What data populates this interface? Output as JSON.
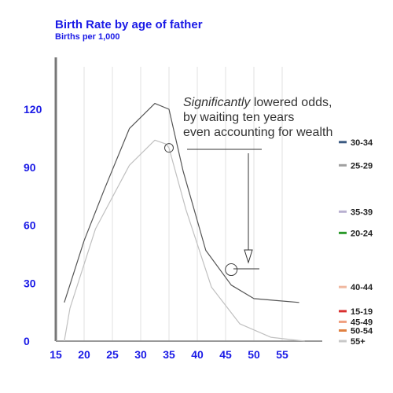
{
  "chart_data": {
    "type": "line",
    "title": "Birth Rate by age of father",
    "subtitle": "Births per 1,000",
    "xlabel": "",
    "ylabel": "",
    "x_ticks": [
      15,
      20,
      25,
      30,
      35,
      40,
      45,
      50,
      55
    ],
    "y_ticks": [
      0,
      30,
      60,
      90,
      120
    ],
    "xlim": [
      15,
      60
    ],
    "ylim": [
      0,
      135
    ],
    "grid": "vertical",
    "series": [
      {
        "x": [
          16.5,
          20,
          23.5,
          28,
          32.5,
          35,
          37.5,
          41.5,
          46,
          50,
          54,
          58
        ],
        "y": [
          20,
          52,
          78,
          110,
          123,
          120,
          88,
          47,
          29,
          22,
          21,
          20
        ]
      },
      {
        "x": [
          16.5,
          17.5,
          22,
          28,
          32.5,
          34.5,
          35,
          38,
          42.5,
          47.5,
          53,
          59
        ],
        "y": [
          0,
          17,
          58,
          91,
          104,
          102,
          100,
          68,
          28,
          9,
          2,
          0
        ]
      }
    ],
    "colors": {
      "dark": "#555555",
      "light": "#c0c0c0",
      "ticks": "#1a1ae6",
      "title": "#1a1ae6"
    },
    "annotation": {
      "lines": [
        "lowered odds,",
        "by waiting ten years",
        "even accounting for wealth"
      ],
      "emphasis": "Significantly"
    },
    "highlight_points": [
      {
        "x": 35,
        "y": 100
      },
      {
        "x": 46,
        "y": 37
      }
    ],
    "legend": {
      "placement": "right",
      "entries": [
        {
          "label": "30-34",
          "color": "#3c5a82",
          "y": 103
        },
        {
          "label": "25-29",
          "color": "#a0a0a0",
          "y": 91
        },
        {
          "label": "35-39",
          "color": "#b8b0d0",
          "y": 67
        },
        {
          "label": "20-24",
          "color": "#2a9a2a",
          "y": 56
        },
        {
          "label": "40-44",
          "color": "#f0b8a0",
          "y": 28
        },
        {
          "label": "15-19",
          "color": "#d93030",
          "y": 15.5
        },
        {
          "label": "45-49",
          "color": "#f0a080",
          "y": 10
        },
        {
          "label": "50-54",
          "color": "#e08040",
          "y": 5.5
        },
        {
          "label": "55+",
          "color": "#c8c8c8",
          "y": 0
        }
      ]
    }
  }
}
